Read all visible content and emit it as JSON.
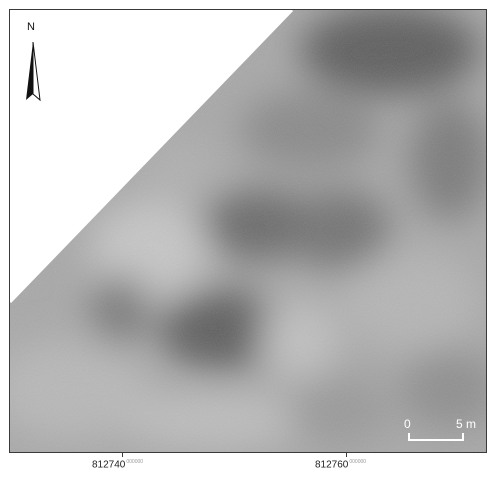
{
  "north_arrow": {
    "label": "N"
  },
  "scale_bar": {
    "start_label": "0",
    "end_label": "5 m"
  },
  "x_axis": {
    "tick_labels": [
      {
        "main": "812740",
        "sup": "000000"
      },
      {
        "main": "812760",
        "sup": "000000"
      }
    ]
  },
  "colors": {
    "frame": "#3a3a3a",
    "raster_light": "#cfcfcf",
    "raster_mid": "#9a9a9a",
    "raster_dark": "#555555",
    "no_data": "#ffffff"
  }
}
